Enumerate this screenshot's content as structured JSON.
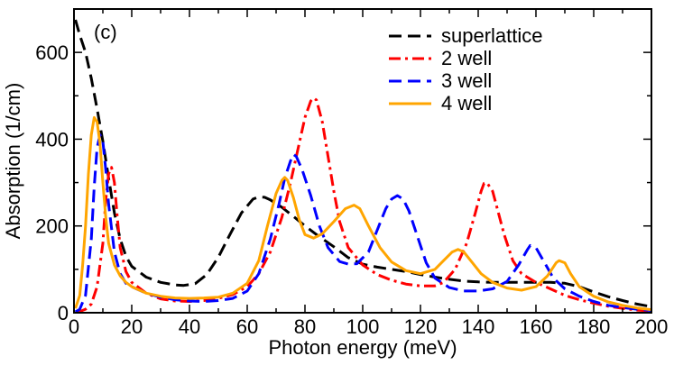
{
  "chart_data": {
    "type": "line",
    "panel_label": "(c)",
    "title": "",
    "xlabel": "Photon energy (meV)",
    "ylabel": "Absorption (1/cm)",
    "xlim": [
      0,
      200
    ],
    "ylim": [
      0,
      700
    ],
    "x_ticks": [
      0,
      20,
      40,
      60,
      80,
      100,
      120,
      140,
      160,
      180,
      200
    ],
    "y_ticks": [
      0,
      200,
      400,
      600
    ],
    "grid": false,
    "legend_position": "top-right",
    "series": [
      {
        "name": "superlattice",
        "color": "#000000",
        "dash": "dashed",
        "points": [
          [
            0.5,
            675
          ],
          [
            2,
            640
          ],
          [
            4,
            600
          ],
          [
            6,
            540
          ],
          [
            8,
            470
          ],
          [
            10,
            395
          ],
          [
            12,
            310
          ],
          [
            14,
            230
          ],
          [
            16,
            170
          ],
          [
            18,
            130
          ],
          [
            20,
            107
          ],
          [
            25,
            82
          ],
          [
            30,
            70
          ],
          [
            35,
            64
          ],
          [
            38,
            63
          ],
          [
            42,
            67
          ],
          [
            46,
            88
          ],
          [
            50,
            128
          ],
          [
            54,
            180
          ],
          [
            58,
            230
          ],
          [
            62,
            262
          ],
          [
            64,
            267
          ],
          [
            66,
            266
          ],
          [
            68,
            260
          ],
          [
            72,
            243
          ],
          [
            76,
            222
          ],
          [
            80,
            200
          ],
          [
            84,
            180
          ],
          [
            90,
            152
          ],
          [
            95,
            127
          ],
          [
            100,
            112
          ],
          [
            105,
            105
          ],
          [
            110,
            100
          ],
          [
            115,
            95
          ],
          [
            120,
            88
          ],
          [
            125,
            82
          ],
          [
            130,
            77
          ],
          [
            135,
            73
          ],
          [
            140,
            71
          ],
          [
            145,
            70
          ],
          [
            150,
            70
          ],
          [
            155,
            70
          ],
          [
            160,
            70
          ],
          [
            165,
            70
          ],
          [
            170,
            68
          ],
          [
            175,
            60
          ],
          [
            180,
            48
          ],
          [
            185,
            37
          ],
          [
            190,
            28
          ],
          [
            195,
            20
          ],
          [
            200,
            14
          ]
        ]
      },
      {
        "name": "2 well",
        "color": "#ff0000",
        "dash": "dashdot",
        "points": [
          [
            0.5,
            1
          ],
          [
            2,
            3
          ],
          [
            4,
            8
          ],
          [
            6,
            20
          ],
          [
            8,
            60
          ],
          [
            10,
            160
          ],
          [
            11,
            260
          ],
          [
            12,
            320
          ],
          [
            13,
            335
          ],
          [
            14,
            300
          ],
          [
            15,
            220
          ],
          [
            16,
            150
          ],
          [
            18,
            95
          ],
          [
            20,
            70
          ],
          [
            25,
            45
          ],
          [
            30,
            32
          ],
          [
            35,
            27
          ],
          [
            40,
            26
          ],
          [
            45,
            28
          ],
          [
            50,
            33
          ],
          [
            55,
            42
          ],
          [
            60,
            60
          ],
          [
            64,
            90
          ],
          [
            68,
            140
          ],
          [
            72,
            220
          ],
          [
            75,
            300
          ],
          [
            78,
            390
          ],
          [
            80,
            450
          ],
          [
            82,
            488
          ],
          [
            83,
            495
          ],
          [
            84,
            490
          ],
          [
            86,
            440
          ],
          [
            88,
            360
          ],
          [
            90,
            280
          ],
          [
            92,
            210
          ],
          [
            95,
            150
          ],
          [
            100,
            110
          ],
          [
            105,
            88
          ],
          [
            110,
            75
          ],
          [
            115,
            66
          ],
          [
            120,
            62
          ],
          [
            125,
            62
          ],
          [
            128,
            70
          ],
          [
            132,
            100
          ],
          [
            136,
            160
          ],
          [
            139,
            230
          ],
          [
            141,
            280
          ],
          [
            142,
            298
          ],
          [
            143,
            300
          ],
          [
            145,
            280
          ],
          [
            147,
            230
          ],
          [
            149,
            180
          ],
          [
            152,
            120
          ],
          [
            155,
            90
          ],
          [
            160,
            70
          ],
          [
            165,
            55
          ],
          [
            170,
            40
          ],
          [
            175,
            30
          ],
          [
            180,
            22
          ],
          [
            185,
            15
          ],
          [
            190,
            10
          ],
          [
            195,
            6
          ],
          [
            200,
            4
          ]
        ]
      },
      {
        "name": "3 well",
        "color": "#0000ff",
        "dash": "dashed",
        "points": [
          [
            0.5,
            2
          ],
          [
            2,
            8
          ],
          [
            4,
            40
          ],
          [
            6,
            170
          ],
          [
            7,
            290
          ],
          [
            8,
            380
          ],
          [
            9,
            410
          ],
          [
            10,
            395
          ],
          [
            11,
            330
          ],
          [
            12,
            250
          ],
          [
            14,
            140
          ],
          [
            16,
            90
          ],
          [
            18,
            68
          ],
          [
            20,
            60
          ],
          [
            25,
            45
          ],
          [
            30,
            36
          ],
          [
            35,
            30
          ],
          [
            40,
            27
          ],
          [
            45,
            26
          ],
          [
            50,
            28
          ],
          [
            55,
            33
          ],
          [
            60,
            50
          ],
          [
            64,
            90
          ],
          [
            68,
            170
          ],
          [
            71,
            250
          ],
          [
            73,
            310
          ],
          [
            75,
            350
          ],
          [
            76,
            365
          ],
          [
            77,
            360
          ],
          [
            79,
            330
          ],
          [
            82,
            270
          ],
          [
            85,
            200
          ],
          [
            88,
            150
          ],
          [
            92,
            118
          ],
          [
            95,
            112
          ],
          [
            98,
            113
          ],
          [
            102,
            140
          ],
          [
            105,
            190
          ],
          [
            108,
            240
          ],
          [
            110,
            262
          ],
          [
            112,
            270
          ],
          [
            114,
            262
          ],
          [
            116,
            235
          ],
          [
            119,
            175
          ],
          [
            122,
            115
          ],
          [
            125,
            80
          ],
          [
            130,
            58
          ],
          [
            135,
            50
          ],
          [
            140,
            50
          ],
          [
            145,
            55
          ],
          [
            150,
            72
          ],
          [
            154,
            110
          ],
          [
            157,
            145
          ],
          [
            158,
            155
          ],
          [
            160,
            150
          ],
          [
            163,
            115
          ],
          [
            166,
            80
          ],
          [
            170,
            55
          ],
          [
            175,
            38
          ],
          [
            180,
            26
          ],
          [
            185,
            17
          ],
          [
            190,
            12
          ],
          [
            195,
            8
          ],
          [
            200,
            5
          ]
        ]
      },
      {
        "name": "4 well",
        "color": "#ffa500",
        "dash": "solid",
        "points": [
          [
            0.5,
            10
          ],
          [
            2,
            40
          ],
          [
            3,
            110
          ],
          [
            4,
            200
          ],
          [
            5,
            320
          ],
          [
            6,
            410
          ],
          [
            7,
            450
          ],
          [
            8,
            440
          ],
          [
            9,
            390
          ],
          [
            10,
            300
          ],
          [
            11,
            220
          ],
          [
            12,
            160
          ],
          [
            14,
            110
          ],
          [
            16,
            85
          ],
          [
            18,
            70
          ],
          [
            20,
            60
          ],
          [
            25,
            45
          ],
          [
            30,
            38
          ],
          [
            35,
            34
          ],
          [
            40,
            33
          ],
          [
            45,
            34
          ],
          [
            50,
            36
          ],
          [
            55,
            45
          ],
          [
            60,
            68
          ],
          [
            64,
            120
          ],
          [
            67,
            200
          ],
          [
            70,
            275
          ],
          [
            72,
            305
          ],
          [
            73,
            312
          ],
          [
            74,
            305
          ],
          [
            76,
            265
          ],
          [
            78,
            215
          ],
          [
            80,
            180
          ],
          [
            83,
            172
          ],
          [
            86,
            182
          ],
          [
            90,
            210
          ],
          [
            94,
            240
          ],
          [
            97,
            248
          ],
          [
            99,
            240
          ],
          [
            102,
            200
          ],
          [
            106,
            150
          ],
          [
            110,
            117
          ],
          [
            115,
            97
          ],
          [
            120,
            90
          ],
          [
            125,
            100
          ],
          [
            128,
            120
          ],
          [
            131,
            140
          ],
          [
            133,
            146
          ],
          [
            135,
            140
          ],
          [
            138,
            115
          ],
          [
            141,
            90
          ],
          [
            145,
            70
          ],
          [
            150,
            57
          ],
          [
            155,
            52
          ],
          [
            160,
            60
          ],
          [
            164,
            85
          ],
          [
            167,
            115
          ],
          [
            168,
            120
          ],
          [
            170,
            115
          ],
          [
            172,
            90
          ],
          [
            175,
            60
          ],
          [
            180,
            38
          ],
          [
            185,
            25
          ],
          [
            190,
            17
          ],
          [
            195,
            11
          ],
          [
            200,
            7
          ]
        ]
      }
    ]
  }
}
